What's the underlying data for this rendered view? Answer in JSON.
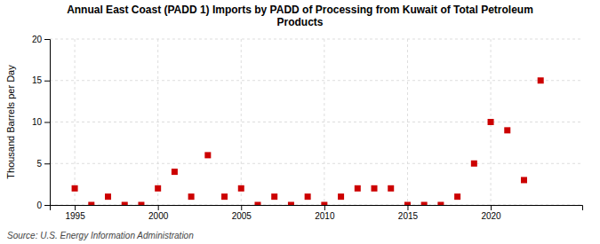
{
  "chart_data": {
    "type": "scatter",
    "title": "Annual East Coast (PADD 1) Imports by PADD of Processing from Kuwait of Total Petroleum\nProducts",
    "ylabel": "Thousand Barrels per Day",
    "annotations": [
      "Source: U.S. Energy Information Administration"
    ],
    "x": [
      1995,
      1996,
      1997,
      1998,
      1999,
      2000,
      2001,
      2002,
      2003,
      2004,
      2005,
      2006,
      2007,
      2008,
      2009,
      2010,
      2011,
      2012,
      2013,
      2014,
      2015,
      2016,
      2017,
      2018,
      2019,
      2020,
      2021,
      2022,
      2023
    ],
    "values": [
      2,
      0,
      1,
      0,
      0,
      2,
      4,
      1,
      6,
      1,
      2,
      0,
      1,
      0,
      1,
      0,
      1,
      2,
      2,
      2,
      0,
      0,
      0,
      1,
      5,
      10,
      9,
      3,
      15
    ],
    "color": "#cc0000",
    "marker": "square",
    "xlim": [
      1993.5,
      2025.5
    ],
    "ylim": [
      0,
      20
    ],
    "xticks": [
      1995,
      2000,
      2005,
      2010,
      2015,
      2020
    ],
    "yticks": [
      0,
      5,
      10,
      15,
      20
    ],
    "grid": true
  }
}
